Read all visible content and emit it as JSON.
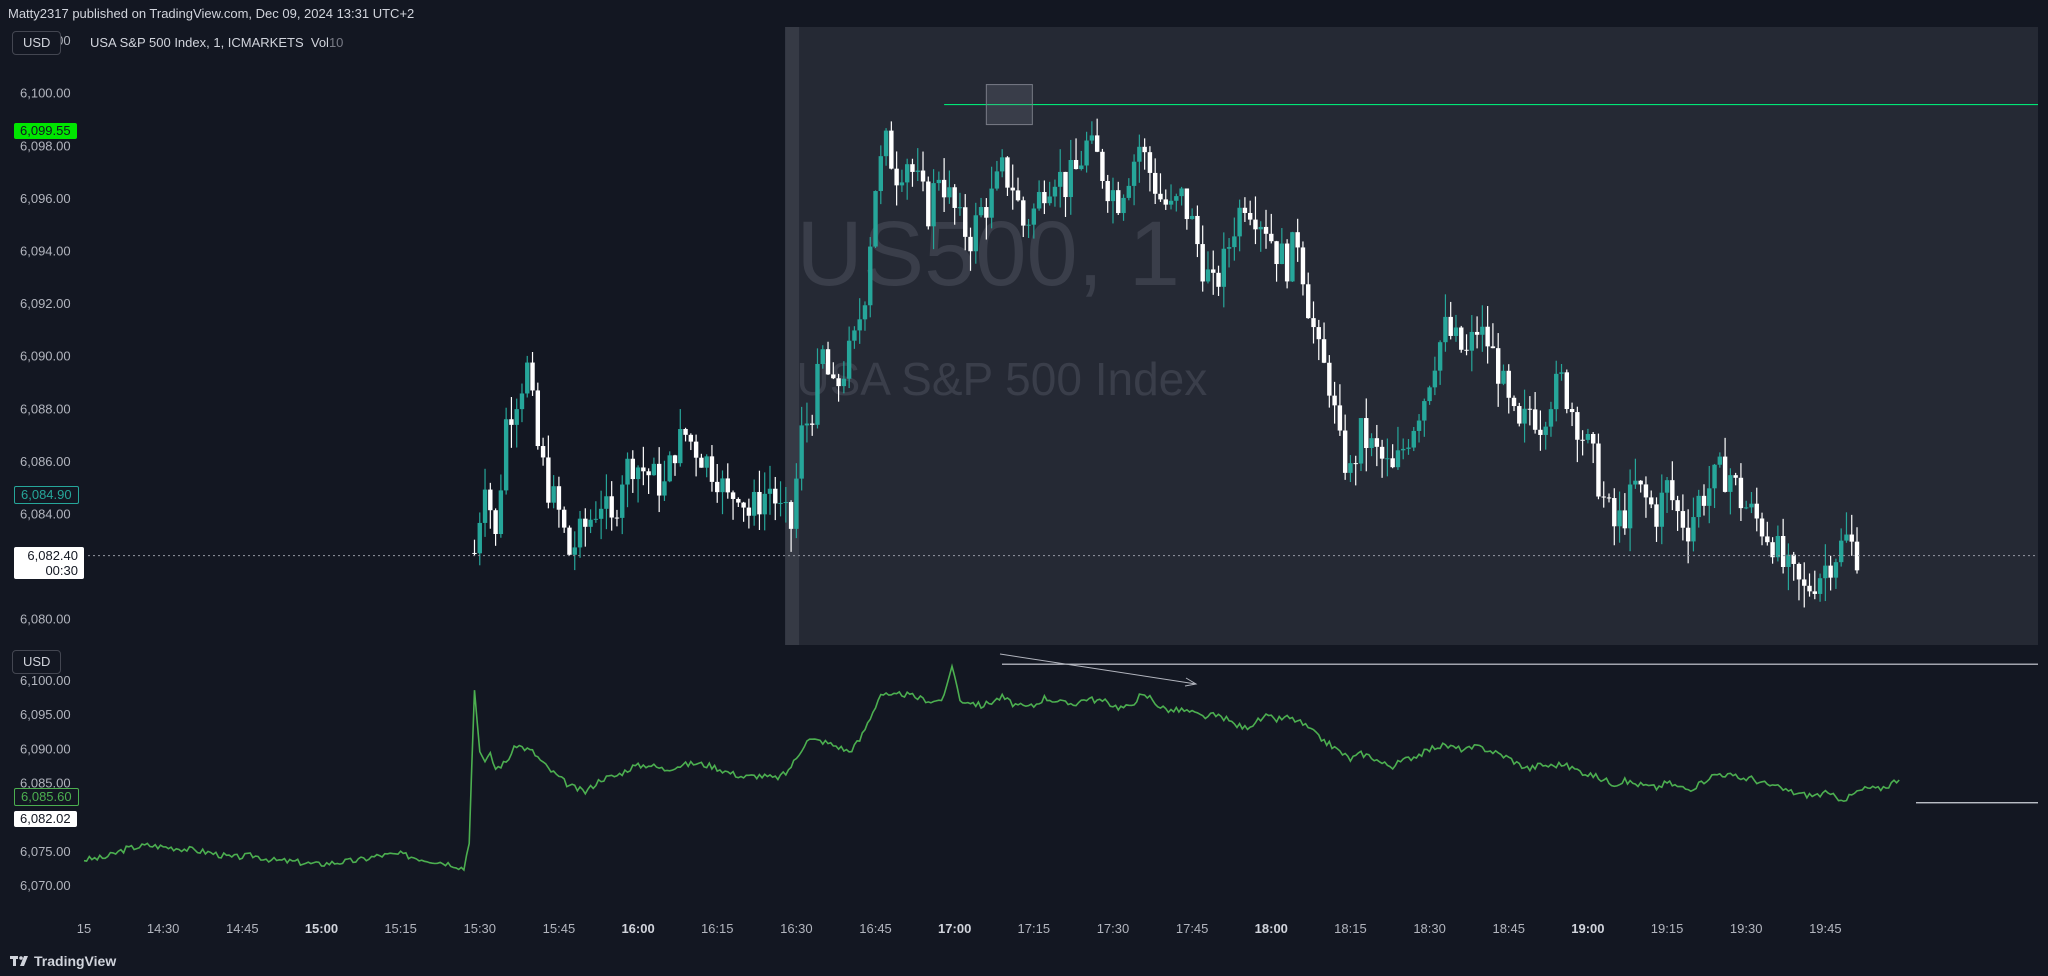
{
  "header": {
    "published_text": "Matty2317 published on TradingView.com, Dec 09, 2024 13:31 UTC+2"
  },
  "main_pane": {
    "currency_label": "USD",
    "legend_title": "USA S&P 500 Index, 1, ICMARKETS",
    "legend_vol": "Vol",
    "legend_vol_value": "10",
    "watermark_symbol": "US500, 1",
    "watermark_name": "USA S&P 500 Index",
    "price_tag_high": "6,099.55",
    "price_tag_mid": "6,084.90",
    "price_tag_last": "6,082.40",
    "countdown": "00:30"
  },
  "line_pane": {
    "currency_label": "USD",
    "price_tag_a": "6,085.60",
    "price_tag_b": "6,082.02"
  },
  "footer": {
    "brand": "TradingView"
  },
  "colors": {
    "background": "#131722",
    "session_shade": "#2a2e39",
    "bull": "#26a69a",
    "bear": "#ffffff",
    "line": "#4caf50",
    "level_line": "#00e676"
  },
  "chart_data": [
    {
      "type": "candlestick",
      "title": "USA S&P 500 Index, 1, ICMARKETS",
      "ylim": [
        6079,
        6102.5
      ],
      "yticks": [
        "6,102.00",
        "6,100.00",
        "6,098.00",
        "6,096.00",
        "6,094.00",
        "6,092.00",
        "6,090.00",
        "6,088.00",
        "6,086.00",
        "6,084.00",
        "6,080.00"
      ],
      "xlim_minutes": [
        0,
        354
      ],
      "xticks": [
        {
          "m": 0,
          "label": "15",
          "bold": false
        },
        {
          "m": 15,
          "label": "14:30",
          "bold": false
        },
        {
          "m": 30,
          "label": "14:45",
          "bold": false
        },
        {
          "m": 45,
          "label": "15:00",
          "bold": true
        },
        {
          "m": 60,
          "label": "15:15",
          "bold": false
        },
        {
          "m": 75,
          "label": "15:30",
          "bold": false
        },
        {
          "m": 90,
          "label": "15:45",
          "bold": false
        },
        {
          "m": 105,
          "label": "16:00",
          "bold": true
        },
        {
          "m": 120,
          "label": "16:15",
          "bold": false
        },
        {
          "m": 135,
          "label": "16:30",
          "bold": false
        },
        {
          "m": 150,
          "label": "16:45",
          "bold": false
        },
        {
          "m": 165,
          "label": "17:00",
          "bold": true
        },
        {
          "m": 180,
          "label": "17:15",
          "bold": false
        },
        {
          "m": 195,
          "label": "17:30",
          "bold": false
        },
        {
          "m": 210,
          "label": "17:45",
          "bold": false
        },
        {
          "m": 225,
          "label": "18:00",
          "bold": true
        },
        {
          "m": 240,
          "label": "18:15",
          "bold": false
        },
        {
          "m": 255,
          "label": "18:30",
          "bold": false
        },
        {
          "m": 270,
          "label": "18:45",
          "bold": false
        },
        {
          "m": 285,
          "label": "19:00",
          "bold": true
        },
        {
          "m": 300,
          "label": "19:15",
          "bold": false
        },
        {
          "m": 315,
          "label": "19:30",
          "bold": false
        },
        {
          "m": 330,
          "label": "19:45",
          "bold": false
        }
      ],
      "session_start_minute": 134,
      "level_price": 6099.55,
      "last_price": 6082.4,
      "candle_keypoints": [
        [
          74,
          6082.5
        ],
        [
          76,
          6085.5
        ],
        [
          78,
          6083.0
        ],
        [
          80,
          6087.5
        ],
        [
          82,
          6088.5
        ],
        [
          84,
          6089.5
        ],
        [
          86,
          6086.5
        ],
        [
          88,
          6085.0
        ],
        [
          90,
          6084.0
        ],
        [
          92,
          6082.5
        ],
        [
          95,
          6083.5
        ],
        [
          98,
          6084.5
        ],
        [
          100,
          6083.5
        ],
        [
          102,
          6085.5
        ],
        [
          104,
          6086.0
        ],
        [
          107,
          6085.5
        ],
        [
          110,
          6085.0
        ],
        [
          112,
          6086.5
        ],
        [
          114,
          6087.0
        ],
        [
          116,
          6086.5
        ],
        [
          118,
          6086.0
        ],
        [
          120,
          6085.5
        ],
        [
          122,
          6084.5
        ],
        [
          124,
          6085.0
        ],
        [
          126,
          6084.0
        ],
        [
          128,
          6084.5
        ],
        [
          130,
          6085.0
        ],
        [
          132,
          6084.0
        ],
        [
          134,
          6083.5
        ],
        [
          136,
          6087.0
        ],
        [
          138,
          6088.0
        ],
        [
          140,
          6090.0
        ],
        [
          142,
          6088.5
        ],
        [
          144,
          6089.5
        ],
        [
          146,
          6090.5
        ],
        [
          148,
          6092.5
        ],
        [
          150,
          6096.5
        ],
        [
          152,
          6098.0
        ],
        [
          154,
          6097.0
        ],
        [
          156,
          6097.5
        ],
        [
          158,
          6096.5
        ],
        [
          160,
          6095.5
        ],
        [
          162,
          6097.0
        ],
        [
          164,
          6096.0
        ],
        [
          166,
          6095.0
        ],
        [
          168,
          6094.5
        ],
        [
          170,
          6095.5
        ],
        [
          172,
          6096.0
        ],
        [
          174,
          6097.0
        ],
        [
          176,
          6096.5
        ],
        [
          178,
          6095.0
        ],
        [
          180,
          6095.5
        ],
        [
          182,
          6096.5
        ],
        [
          184,
          6097.0
        ],
        [
          186,
          6096.5
        ],
        [
          188,
          6097.0
        ],
        [
          190,
          6098.0
        ],
        [
          192,
          6097.5
        ],
        [
          194,
          6096.5
        ],
        [
          196,
          6096.0
        ],
        [
          198,
          6097.0
        ],
        [
          200,
          6098.0
        ],
        [
          202,
          6097.0
        ],
        [
          204,
          6096.0
        ],
        [
          206,
          6095.5
        ],
        [
          208,
          6096.0
        ],
        [
          210,
          6095.0
        ],
        [
          212,
          6093.5
        ],
        [
          214,
          6092.5
        ],
        [
          216,
          6093.5
        ],
        [
          218,
          6095.0
        ],
        [
          220,
          6096.0
        ],
        [
          222,
          6095.5
        ],
        [
          224,
          6095.0
        ],
        [
          226,
          6094.0
        ],
        [
          228,
          6093.5
        ],
        [
          230,
          6094.5
        ],
        [
          232,
          6092.0
        ],
        [
          234,
          6090.0
        ],
        [
          236,
          6089.0
        ],
        [
          238,
          6086.5
        ],
        [
          240,
          6085.5
        ],
        [
          242,
          6087.0
        ],
        [
          244,
          6086.5
        ],
        [
          246,
          6086.0
        ],
        [
          248,
          6085.5
        ],
        [
          250,
          6086.5
        ],
        [
          252,
          6087.5
        ],
        [
          254,
          6088.5
        ],
        [
          256,
          6090.0
        ],
        [
          258,
          6091.0
        ],
        [
          260,
          6090.5
        ],
        [
          262,
          6090.0
        ],
        [
          264,
          6091.0
        ],
        [
          266,
          6090.5
        ],
        [
          268,
          6089.5
        ],
        [
          270,
          6088.0
        ],
        [
          272,
          6087.0
        ],
        [
          274,
          6088.0
        ],
        [
          276,
          6087.5
        ],
        [
          278,
          6088.5
        ],
        [
          280,
          6089.0
        ],
        [
          282,
          6088.0
        ],
        [
          284,
          6087.0
        ],
        [
          286,
          6086.0
        ],
        [
          288,
          6084.5
        ],
        [
          290,
          6083.5
        ],
        [
          292,
          6084.0
        ],
        [
          294,
          6085.0
        ],
        [
          296,
          6084.5
        ],
        [
          298,
          6084.0
        ],
        [
          300,
          6085.0
        ],
        [
          302,
          6084.0
        ],
        [
          304,
          6083.5
        ],
        [
          306,
          6084.5
        ],
        [
          308,
          6085.0
        ],
        [
          310,
          6085.5
        ],
        [
          312,
          6085.5
        ],
        [
          314,
          6084.5
        ],
        [
          316,
          6084.0
        ],
        [
          318,
          6083.5
        ],
        [
          320,
          6083.0
        ],
        [
          322,
          6082.0
        ],
        [
          324,
          6081.5
        ],
        [
          326,
          6081.0
        ],
        [
          328,
          6081.5
        ],
        [
          330,
          6082.0
        ],
        [
          332,
          6082.5
        ],
        [
          334,
          6083.0
        ],
        [
          336,
          6082.5
        ]
      ]
    },
    {
      "type": "line",
      "yticks": [
        "6,100.00",
        "6,095.00",
        "6,090.00",
        "6,085.00",
        "6,080.00",
        "6,075.00",
        "6,070.00"
      ],
      "ylim": [
        6067.5,
        6103.5
      ],
      "level_top": 6102.3,
      "level_bottom": 6082.02,
      "line_keypoints": [
        [
          0,
          6073.7
        ],
        [
          4,
          6074.0
        ],
        [
          8,
          6075.3
        ],
        [
          12,
          6075.8
        ],
        [
          16,
          6075.5
        ],
        [
          20,
          6075.2
        ],
        [
          24,
          6074.7
        ],
        [
          28,
          6074.0
        ],
        [
          32,
          6074.3
        ],
        [
          36,
          6073.6
        ],
        [
          40,
          6073.4
        ],
        [
          44,
          6073.0
        ],
        [
          48,
          6073.3
        ],
        [
          52,
          6073.6
        ],
        [
          56,
          6074.3
        ],
        [
          60,
          6074.5
        ],
        [
          64,
          6073.8
        ],
        [
          68,
          6073.3
        ],
        [
          70,
          6073.0
        ],
        [
          72,
          6072.4
        ],
        [
          73,
          6076.5
        ],
        [
          74,
          6098.5
        ],
        [
          75,
          6089.5
        ],
        [
          76,
          6088.0
        ],
        [
          77,
          6089.0
        ],
        [
          78,
          6087.0
        ],
        [
          80,
          6088.0
        ],
        [
          82,
          6090.5
        ],
        [
          85,
          6089.5
        ],
        [
          88,
          6087.0
        ],
        [
          92,
          6084.5
        ],
        [
          95,
          6083.6
        ],
        [
          98,
          6085.5
        ],
        [
          101,
          6086.0
        ],
        [
          104,
          6087.3
        ],
        [
          107,
          6087.6
        ],
        [
          110,
          6086.9
        ],
        [
          113,
          6087.5
        ],
        [
          116,
          6087.8
        ],
        [
          119,
          6087.4
        ],
        [
          122,
          6086.5
        ],
        [
          125,
          6085.8
        ],
        [
          128,
          6086.0
        ],
        [
          131,
          6085.6
        ],
        [
          133,
          6086.3
        ],
        [
          135,
          6088.5
        ],
        [
          137,
          6091.3
        ],
        [
          140,
          6091.0
        ],
        [
          143,
          6090.2
        ],
        [
          145,
          6089.5
        ],
        [
          147,
          6091.2
        ],
        [
          149,
          6094.5
        ],
        [
          151,
          6098.0
        ],
        [
          153,
          6097.5
        ],
        [
          155,
          6098.0
        ],
        [
          157,
          6097.6
        ],
        [
          159,
          6097.2
        ],
        [
          161,
          6096.8
        ],
        [
          163,
          6097.4
        ],
        [
          164.5,
          6102.3
        ],
        [
          166,
          6097.0
        ],
        [
          168,
          6096.8
        ],
        [
          170,
          6096.2
        ],
        [
          172,
          6096.8
        ],
        [
          174,
          6097.5
        ],
        [
          176,
          6096.5
        ],
        [
          178,
          6096.0
        ],
        [
          180,
          6096.2
        ],
        [
          182,
          6097.4
        ],
        [
          184,
          6097.0
        ],
        [
          186,
          6096.5
        ],
        [
          188,
          6096.6
        ],
        [
          190,
          6097.3
        ],
        [
          192,
          6097.0
        ],
        [
          194,
          6096.7
        ],
        [
          196,
          6096.0
        ],
        [
          198,
          6096.0
        ],
        [
          200,
          6097.6
        ],
        [
          202,
          6097.5
        ],
        [
          204,
          6096.0
        ],
        [
          206,
          6095.5
        ],
        [
          208,
          6095.6
        ],
        [
          210,
          6095.2
        ],
        [
          212,
          6094.6
        ],
        [
          214,
          6094.8
        ],
        [
          216,
          6094.5
        ],
        [
          218,
          6093.5
        ],
        [
          220,
          6093.0
        ],
        [
          222,
          6093.8
        ],
        [
          224,
          6094.6
        ],
        [
          226,
          6094.2
        ],
        [
          228,
          6094.5
        ],
        [
          230,
          6094.0
        ],
        [
          232,
          6093.0
        ],
        [
          234,
          6091.6
        ],
        [
          236,
          6090.6
        ],
        [
          238,
          6089.5
        ],
        [
          240,
          6088.4
        ],
        [
          242,
          6089.2
        ],
        [
          244,
          6088.8
        ],
        [
          246,
          6087.8
        ],
        [
          248,
          6087.4
        ],
        [
          250,
          6088.2
        ],
        [
          252,
          6088.8
        ],
        [
          254,
          6089.4
        ],
        [
          256,
          6090.2
        ],
        [
          258,
          6090.4
        ],
        [
          260,
          6090.0
        ],
        [
          262,
          6089.8
        ],
        [
          264,
          6090.2
        ],
        [
          266,
          6089.8
        ],
        [
          268,
          6089.2
        ],
        [
          270,
          6088.6
        ],
        [
          272,
          6087.6
        ],
        [
          274,
          6087.0
        ],
        [
          276,
          6087.6
        ],
        [
          278,
          6087.4
        ],
        [
          280,
          6087.7
        ],
        [
          282,
          6087.1
        ],
        [
          284,
          6086.5
        ],
        [
          286,
          6086.0
        ],
        [
          288,
          6085.4
        ],
        [
          290,
          6084.8
        ],
        [
          292,
          6085.2
        ],
        [
          294,
          6084.8
        ],
        [
          296,
          6084.5
        ],
        [
          298,
          6084.2
        ],
        [
          300,
          6085.0
        ],
        [
          302,
          6084.4
        ],
        [
          304,
          6084.0
        ],
        [
          306,
          6084.6
        ],
        [
          308,
          6085.8
        ],
        [
          310,
          6086.3
        ],
        [
          312,
          6086.0
        ],
        [
          314,
          6085.6
        ],
        [
          316,
          6085.6
        ],
        [
          318,
          6084.9
        ],
        [
          320,
          6084.5
        ],
        [
          322,
          6084.0
        ],
        [
          324,
          6083.5
        ],
        [
          326,
          6083.2
        ],
        [
          328,
          6083.1
        ],
        [
          330,
          6083.4
        ],
        [
          332,
          6082.8
        ],
        [
          334,
          6082.6
        ],
        [
          336,
          6083.6
        ],
        [
          338,
          6084.2
        ],
        [
          340,
          6084.0
        ],
        [
          342,
          6084.6
        ],
        [
          344,
          6085.6
        ]
      ]
    }
  ]
}
